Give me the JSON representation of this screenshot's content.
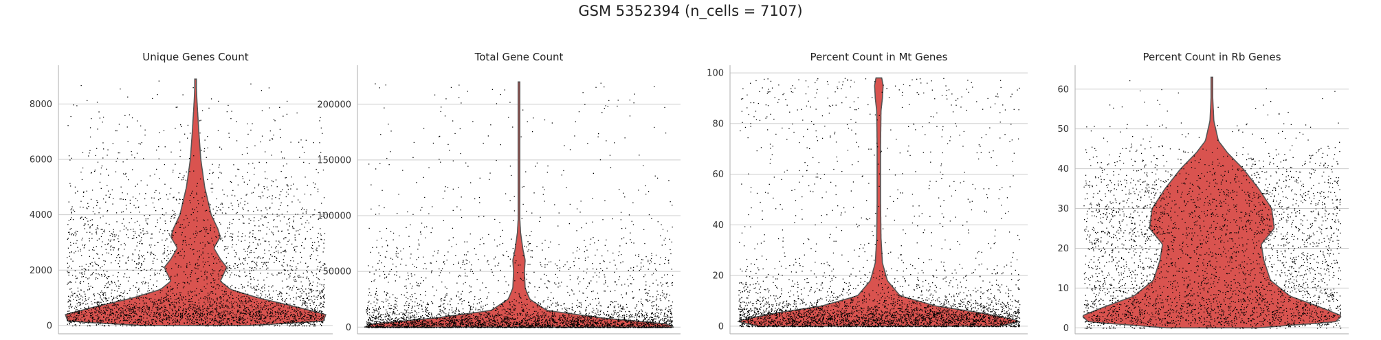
{
  "suptitle": "GSM 5352394 (n_cells = 7107)",
  "colors": {
    "violin_fill": "#d9534f",
    "violin_edge": "#555555",
    "points": "#000000",
    "grid": "#cccccc",
    "axis": "#bbbbbb"
  },
  "chart_data": [
    {
      "type": "violin",
      "title": "Unique Genes Count",
      "ylim": [
        -300,
        9400
      ],
      "yticks": [
        0,
        2000,
        4000,
        6000,
        8000
      ],
      "ytick_labels": [
        "0",
        "2000",
        "4000",
        "6000",
        "8000"
      ],
      "grid": true,
      "n_points": 7107,
      "violin_max": 8900,
      "density": [
        [
          0,
          0.4
        ],
        [
          150,
          0.98
        ],
        [
          400,
          1.0
        ],
        [
          700,
          0.75
        ],
        [
          1000,
          0.48
        ],
        [
          1300,
          0.27
        ],
        [
          1600,
          0.19
        ],
        [
          1900,
          0.22
        ],
        [
          2100,
          0.24
        ],
        [
          2400,
          0.19
        ],
        [
          2800,
          0.14
        ],
        [
          3200,
          0.19
        ],
        [
          3500,
          0.17
        ],
        [
          4000,
          0.12
        ],
        [
          5000,
          0.07
        ],
        [
          6000,
          0.04
        ],
        [
          7000,
          0.025
        ],
        [
          8000,
          0.012
        ],
        [
          8900,
          0.003
        ]
      ]
    },
    {
      "type": "violin",
      "title": "Total Gene Count",
      "ylim": [
        -6000,
        235000
      ],
      "yticks": [
        0,
        50000,
        100000,
        150000,
        200000
      ],
      "ytick_labels": [
        "0",
        "50000",
        "100000",
        "150000",
        "200000"
      ],
      "grid": true,
      "n_points": 7107,
      "violin_max": 220000,
      "density": [
        [
          0,
          1.0
        ],
        [
          3000,
          0.95
        ],
        [
          8000,
          0.55
        ],
        [
          15000,
          0.18
        ],
        [
          25000,
          0.07
        ],
        [
          35000,
          0.04
        ],
        [
          50000,
          0.035
        ],
        [
          60000,
          0.04
        ],
        [
          70000,
          0.025
        ],
        [
          85000,
          0.01
        ],
        [
          100000,
          0.004
        ],
        [
          150000,
          0.002
        ],
        [
          220000,
          0.001
        ]
      ]
    },
    {
      "type": "violin",
      "title": "Percent Count in Mt Genes",
      "ylim": [
        -3,
        103
      ],
      "yticks": [
        0,
        20,
        40,
        60,
        80,
        100
      ],
      "ytick_labels": [
        "0",
        "20",
        "40",
        "60",
        "80",
        "100"
      ],
      "grid": true,
      "n_points": 7107,
      "violin_max": 98,
      "density": [
        [
          0,
          0.85
        ],
        [
          2,
          1.0
        ],
        [
          5,
          0.75
        ],
        [
          8,
          0.4
        ],
        [
          12,
          0.15
        ],
        [
          18,
          0.06
        ],
        [
          25,
          0.025
        ],
        [
          35,
          0.015
        ],
        [
          50,
          0.012
        ],
        [
          70,
          0.012
        ],
        [
          85,
          0.015
        ],
        [
          90,
          0.025
        ],
        [
          95,
          0.03
        ],
        [
          98,
          0.02
        ]
      ]
    },
    {
      "type": "violin",
      "title": "Percent Count in Rb Genes",
      "ylim": [
        -1.5,
        66
      ],
      "yticks": [
        0,
        10,
        20,
        30,
        40,
        50,
        60
      ],
      "ytick_labels": [
        "0",
        "10",
        "20",
        "30",
        "40",
        "50",
        "60"
      ],
      "grid": true,
      "n_points": 7107,
      "violin_max": 63,
      "density": [
        [
          0,
          0.35
        ],
        [
          1.5,
          0.95
        ],
        [
          3,
          1.0
        ],
        [
          5,
          0.85
        ],
        [
          8,
          0.6
        ],
        [
          12,
          0.45
        ],
        [
          17,
          0.4
        ],
        [
          21,
          0.38
        ],
        [
          25,
          0.48
        ],
        [
          30,
          0.46
        ],
        [
          35,
          0.36
        ],
        [
          40,
          0.24
        ],
        [
          44,
          0.12
        ],
        [
          47,
          0.05
        ],
        [
          52,
          0.015
        ],
        [
          58,
          0.006
        ],
        [
          63,
          0.002
        ]
      ]
    }
  ]
}
